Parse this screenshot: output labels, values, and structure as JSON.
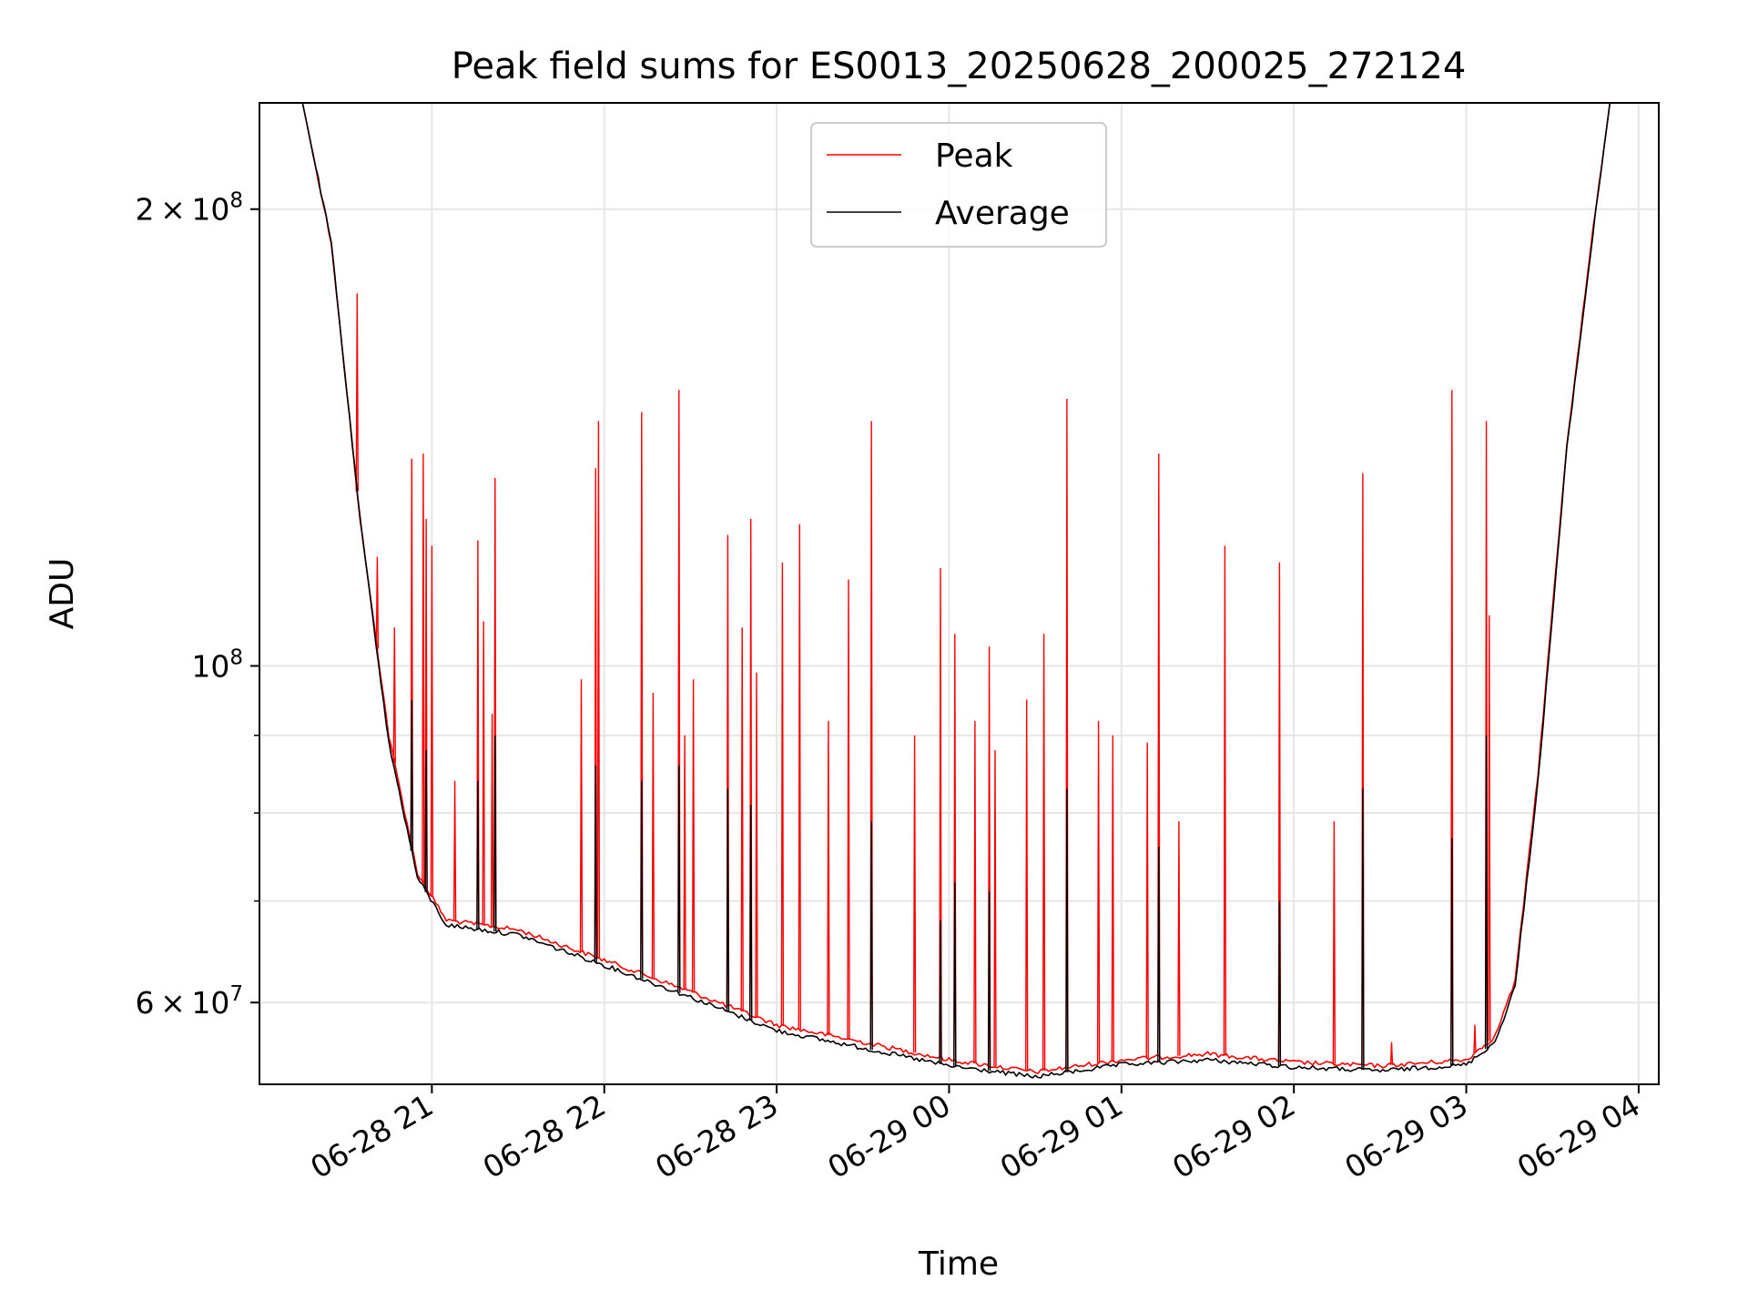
{
  "chart_data": {
    "type": "line",
    "title": "Peak field sums for ES0013_20250628_200025_272124",
    "xlabel": "Time",
    "ylabel": "ADU",
    "y_scale": "log",
    "ylim": [
      53000000,
      235000000
    ],
    "xlim": [
      "2025-06-28 20:00",
      "2025-06-29 04:07"
    ],
    "grid": true,
    "legend": {
      "placement": "upper center"
    },
    "x_ticks": [
      {
        "value": "2025-06-28 21:00",
        "label": "06-28 21"
      },
      {
        "value": "2025-06-28 22:00",
        "label": "06-28 22"
      },
      {
        "value": "2025-06-28 23:00",
        "label": "06-28 23"
      },
      {
        "value": "2025-06-29 00:00",
        "label": "06-29 00"
      },
      {
        "value": "2025-06-29 01:00",
        "label": "06-29 01"
      },
      {
        "value": "2025-06-29 02:00",
        "label": "06-29 02"
      },
      {
        "value": "2025-06-29 03:00",
        "label": "06-29 03"
      },
      {
        "value": "2025-06-29 04:00",
        "label": "06-29 04"
      }
    ],
    "y_major_ticks": [
      {
        "value": 60000000,
        "mantissa": "6",
        "label": "6 × 10⁷"
      },
      {
        "value": 100000000,
        "mantissa": "",
        "label": "10⁸"
      },
      {
        "value": 200000000,
        "mantissa": "2",
        "label": "2 × 10⁸"
      }
    ],
    "y_minor_gridlines": [
      70000000,
      80000000,
      90000000
    ],
    "series": [
      {
        "name": "Peak",
        "color": "#ff0000",
        "baseline": [
          [
            "2025-06-28 20:00",
            235000000
          ],
          [
            "2025-06-28 20:15",
            235000000
          ],
          [
            "2025-06-28 20:25",
            190000000
          ],
          [
            "2025-06-28 20:35",
            125000000
          ],
          [
            "2025-06-28 20:45",
            90000000
          ],
          [
            "2025-06-28 20:55",
            73000000
          ],
          [
            "2025-06-28 21:05",
            68000000
          ],
          [
            "2025-06-28 21:30",
            67000000
          ],
          [
            "2025-06-28 22:00",
            64000000
          ],
          [
            "2025-06-28 22:30",
            61000000
          ],
          [
            "2025-06-28 23:00",
            58000000
          ],
          [
            "2025-06-28 23:30",
            56500000
          ],
          [
            "2025-06-29 00:00",
            55000000
          ],
          [
            "2025-06-29 00:30",
            54000000
          ],
          [
            "2025-06-29 01:00",
            55000000
          ],
          [
            "2025-06-29 01:30",
            55500000
          ],
          [
            "2025-06-29 02:00",
            54800000
          ],
          [
            "2025-06-29 02:30",
            54500000
          ],
          [
            "2025-06-29 03:00",
            55000000
          ],
          [
            "2025-06-29 03:10",
            57000000
          ],
          [
            "2025-06-29 03:17",
            62000000
          ],
          [
            "2025-06-29 03:25",
            85000000
          ],
          [
            "2025-06-29 03:35",
            140000000
          ],
          [
            "2025-06-29 03:45",
            200000000
          ],
          [
            "2025-06-29 03:50",
            235000000
          ],
          [
            "2025-06-29 04:07",
            235000000
          ]
        ],
        "spikes": [
          [
            "2025-06-28 20:34",
            176000000
          ],
          [
            "2025-06-28 20:41",
            118000000
          ],
          [
            "2025-06-28 20:47",
            106000000
          ],
          [
            "2025-06-28 20:53",
            137000000
          ],
          [
            "2025-06-28 20:58",
            125000000
          ],
          [
            "2025-06-28 20:57",
            138000000
          ],
          [
            "2025-06-28 21:00",
            120000000
          ],
          [
            "2025-06-28 21:08",
            84000000
          ],
          [
            "2025-06-28 21:16",
            121000000
          ],
          [
            "2025-06-28 21:18",
            107000000
          ],
          [
            "2025-06-28 21:21",
            93000000
          ],
          [
            "2025-06-28 21:22",
            133000000
          ],
          [
            "2025-06-28 21:52",
            98000000
          ],
          [
            "2025-06-28 21:57",
            135000000
          ],
          [
            "2025-06-28 21:58",
            145000000
          ],
          [
            "2025-06-28 22:13",
            147000000
          ],
          [
            "2025-06-28 22:17",
            96000000
          ],
          [
            "2025-06-28 22:26",
            152000000
          ],
          [
            "2025-06-28 22:28",
            90000000
          ],
          [
            "2025-06-28 22:31",
            98000000
          ],
          [
            "2025-06-28 22:43",
            122000000
          ],
          [
            "2025-06-28 22:48",
            106000000
          ],
          [
            "2025-06-28 22:51",
            125000000
          ],
          [
            "2025-06-28 22:53",
            99000000
          ],
          [
            "2025-06-28 23:02",
            117000000
          ],
          [
            "2025-06-28 23:08",
            124000000
          ],
          [
            "2025-06-28 23:18",
            92000000
          ],
          [
            "2025-06-28 23:25",
            114000000
          ],
          [
            "2025-06-28 23:33",
            145000000
          ],
          [
            "2025-06-28 23:48",
            90000000
          ],
          [
            "2025-06-28 23:57",
            116000000
          ],
          [
            "2025-06-29 00:02",
            105000000
          ],
          [
            "2025-06-29 00:09",
            92000000
          ],
          [
            "2025-06-29 00:14",
            103000000
          ],
          [
            "2025-06-29 00:16",
            88000000
          ],
          [
            "2025-06-29 00:27",
            95000000
          ],
          [
            "2025-06-29 00:33",
            105000000
          ],
          [
            "2025-06-29 00:41",
            150000000
          ],
          [
            "2025-06-29 00:52",
            92000000
          ],
          [
            "2025-06-29 00:57",
            90000000
          ],
          [
            "2025-06-29 01:09",
            89000000
          ],
          [
            "2025-06-29 01:13",
            138000000
          ],
          [
            "2025-06-29 01:20",
            79000000
          ],
          [
            "2025-06-29 01:36",
            120000000
          ],
          [
            "2025-06-29 01:55",
            117000000
          ],
          [
            "2025-06-29 02:14",
            79000000
          ],
          [
            "2025-06-29 02:24",
            134000000
          ],
          [
            "2025-06-29 02:34",
            56500000
          ],
          [
            "2025-06-29 02:55",
            152000000
          ],
          [
            "2025-06-29 03:03",
            58000000
          ],
          [
            "2025-06-29 03:07",
            145000000
          ],
          [
            "2025-06-29 03:08",
            108000000
          ]
        ]
      },
      {
        "name": "Average",
        "color": "#000000",
        "baseline": [
          [
            "2025-06-28 20:00",
            235000000
          ],
          [
            "2025-06-28 20:15",
            235000000
          ],
          [
            "2025-06-28 20:25",
            190000000
          ],
          [
            "2025-06-28 20:35",
            125000000
          ],
          [
            "2025-06-28 20:45",
            89000000
          ],
          [
            "2025-06-28 20:55",
            72500000
          ],
          [
            "2025-06-28 21:05",
            67500000
          ],
          [
            "2025-06-28 21:30",
            66500000
          ],
          [
            "2025-06-28 22:00",
            63500000
          ],
          [
            "2025-06-28 22:30",
            60500000
          ],
          [
            "2025-06-28 23:00",
            57500000
          ],
          [
            "2025-06-28 23:30",
            56000000
          ],
          [
            "2025-06-29 00:00",
            54500000
          ],
          [
            "2025-06-29 00:30",
            53600000
          ],
          [
            "2025-06-29 01:00",
            54600000
          ],
          [
            "2025-06-29 01:30",
            55000000
          ],
          [
            "2025-06-29 02:00",
            54400000
          ],
          [
            "2025-06-29 02:30",
            54100000
          ],
          [
            "2025-06-29 03:00",
            54600000
          ],
          [
            "2025-06-29 03:10",
            56500000
          ],
          [
            "2025-06-29 03:17",
            61500000
          ],
          [
            "2025-06-29 03:25",
            84000000
          ],
          [
            "2025-06-29 03:35",
            139000000
          ],
          [
            "2025-06-29 03:45",
            199000000
          ],
          [
            "2025-06-29 03:50",
            235000000
          ],
          [
            "2025-06-29 04:07",
            235000000
          ]
        ],
        "spikes": [
          [
            "2025-06-28 20:53",
            95000000
          ],
          [
            "2025-06-28 20:58",
            88000000
          ],
          [
            "2025-06-28 21:16",
            84000000
          ],
          [
            "2025-06-28 21:22",
            90000000
          ],
          [
            "2025-06-28 21:57",
            86000000
          ],
          [
            "2025-06-28 22:13",
            84000000
          ],
          [
            "2025-06-28 22:26",
            86000000
          ],
          [
            "2025-06-28 22:43",
            83000000
          ],
          [
            "2025-06-28 22:51",
            81000000
          ],
          [
            "2025-06-28 23:33",
            79000000
          ],
          [
            "2025-06-28 23:57",
            68000000
          ],
          [
            "2025-06-29 00:02",
            72000000
          ],
          [
            "2025-06-29 00:14",
            71000000
          ],
          [
            "2025-06-29 00:41",
            83000000
          ],
          [
            "2025-06-29 01:13",
            76000000
          ],
          [
            "2025-06-29 01:55",
            70000000
          ],
          [
            "2025-06-29 02:24",
            83000000
          ],
          [
            "2025-06-29 02:55",
            77000000
          ],
          [
            "2025-06-29 03:07",
            90000000
          ]
        ]
      }
    ]
  }
}
